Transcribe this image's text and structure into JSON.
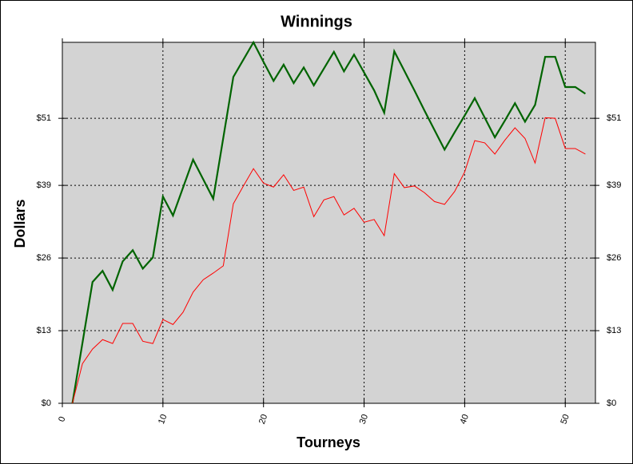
{
  "chart_data": {
    "type": "line",
    "title": "Winnings",
    "x_label": "Tourneys",
    "y_label": "Dollars",
    "x": [
      1,
      2,
      3,
      4,
      5,
      6,
      7,
      8,
      9,
      10,
      11,
      12,
      13,
      14,
      15,
      16,
      17,
      18,
      19,
      20,
      21,
      22,
      23,
      24,
      25,
      26,
      27,
      28,
      29,
      30,
      31,
      32,
      33,
      34,
      35,
      36,
      37,
      38,
      39,
      40,
      41,
      42,
      43,
      44,
      45,
      46,
      47,
      48,
      49,
      50,
      51,
      52
    ],
    "series": [
      {
        "color": "#006400",
        "width": 2.2,
        "values": [
          0,
          10.8,
          21.7,
          23.7,
          20.3,
          25.4,
          27.4,
          24.1,
          26.1,
          37,
          33.6,
          38.6,
          43.6,
          40.1,
          36.6,
          47.5,
          58.4,
          61.5,
          64.6,
          61.1,
          57.7,
          60.6,
          57.3,
          60.1,
          56.9,
          59.9,
          62.9,
          59.4,
          62.4,
          59.2,
          56,
          52,
          63,
          59.5,
          56,
          52.4,
          48.9,
          45.4,
          48.5,
          51.5,
          54.6,
          51.1,
          47.6,
          50.6,
          53.7,
          50.4,
          53.4,
          62,
          62,
          56.6,
          56.6,
          55.4
        ]
      },
      {
        "color": "#ff0000",
        "width": 1,
        "values": [
          0,
          7.1,
          9.7,
          11.4,
          10.7,
          14.3,
          14.3,
          11.1,
          10.7,
          15,
          14.1,
          16.3,
          19.9,
          22.1,
          23.3,
          24.6,
          35.7,
          38.9,
          42,
          39.4,
          38.7,
          40.9,
          38.1,
          38.7,
          33.4,
          36.4,
          37,
          33.7,
          34.9,
          32.4,
          32.9,
          30,
          41.1,
          38.6,
          38.9,
          37.7,
          36.1,
          35.6,
          37.9,
          41.4,
          47,
          46.6,
          44.6,
          47.1,
          49.3,
          47.4,
          43,
          51.1,
          51,
          45.6,
          45.6,
          44.6
        ]
      }
    ],
    "xlim": [
      0,
      53
    ],
    "xticks": [
      0,
      10,
      20,
      30,
      40,
      50
    ],
    "ylim": [
      0,
      64.6
    ],
    "yticks": [
      {
        "value": 0,
        "label": "$0"
      },
      {
        "value": 13,
        "label": "$13"
      },
      {
        "value": 26,
        "label": "$26"
      },
      {
        "value": 39,
        "label": "$39"
      },
      {
        "value": 51,
        "label": "$51"
      }
    ],
    "grid": true,
    "background": "#d3d3d3"
  }
}
